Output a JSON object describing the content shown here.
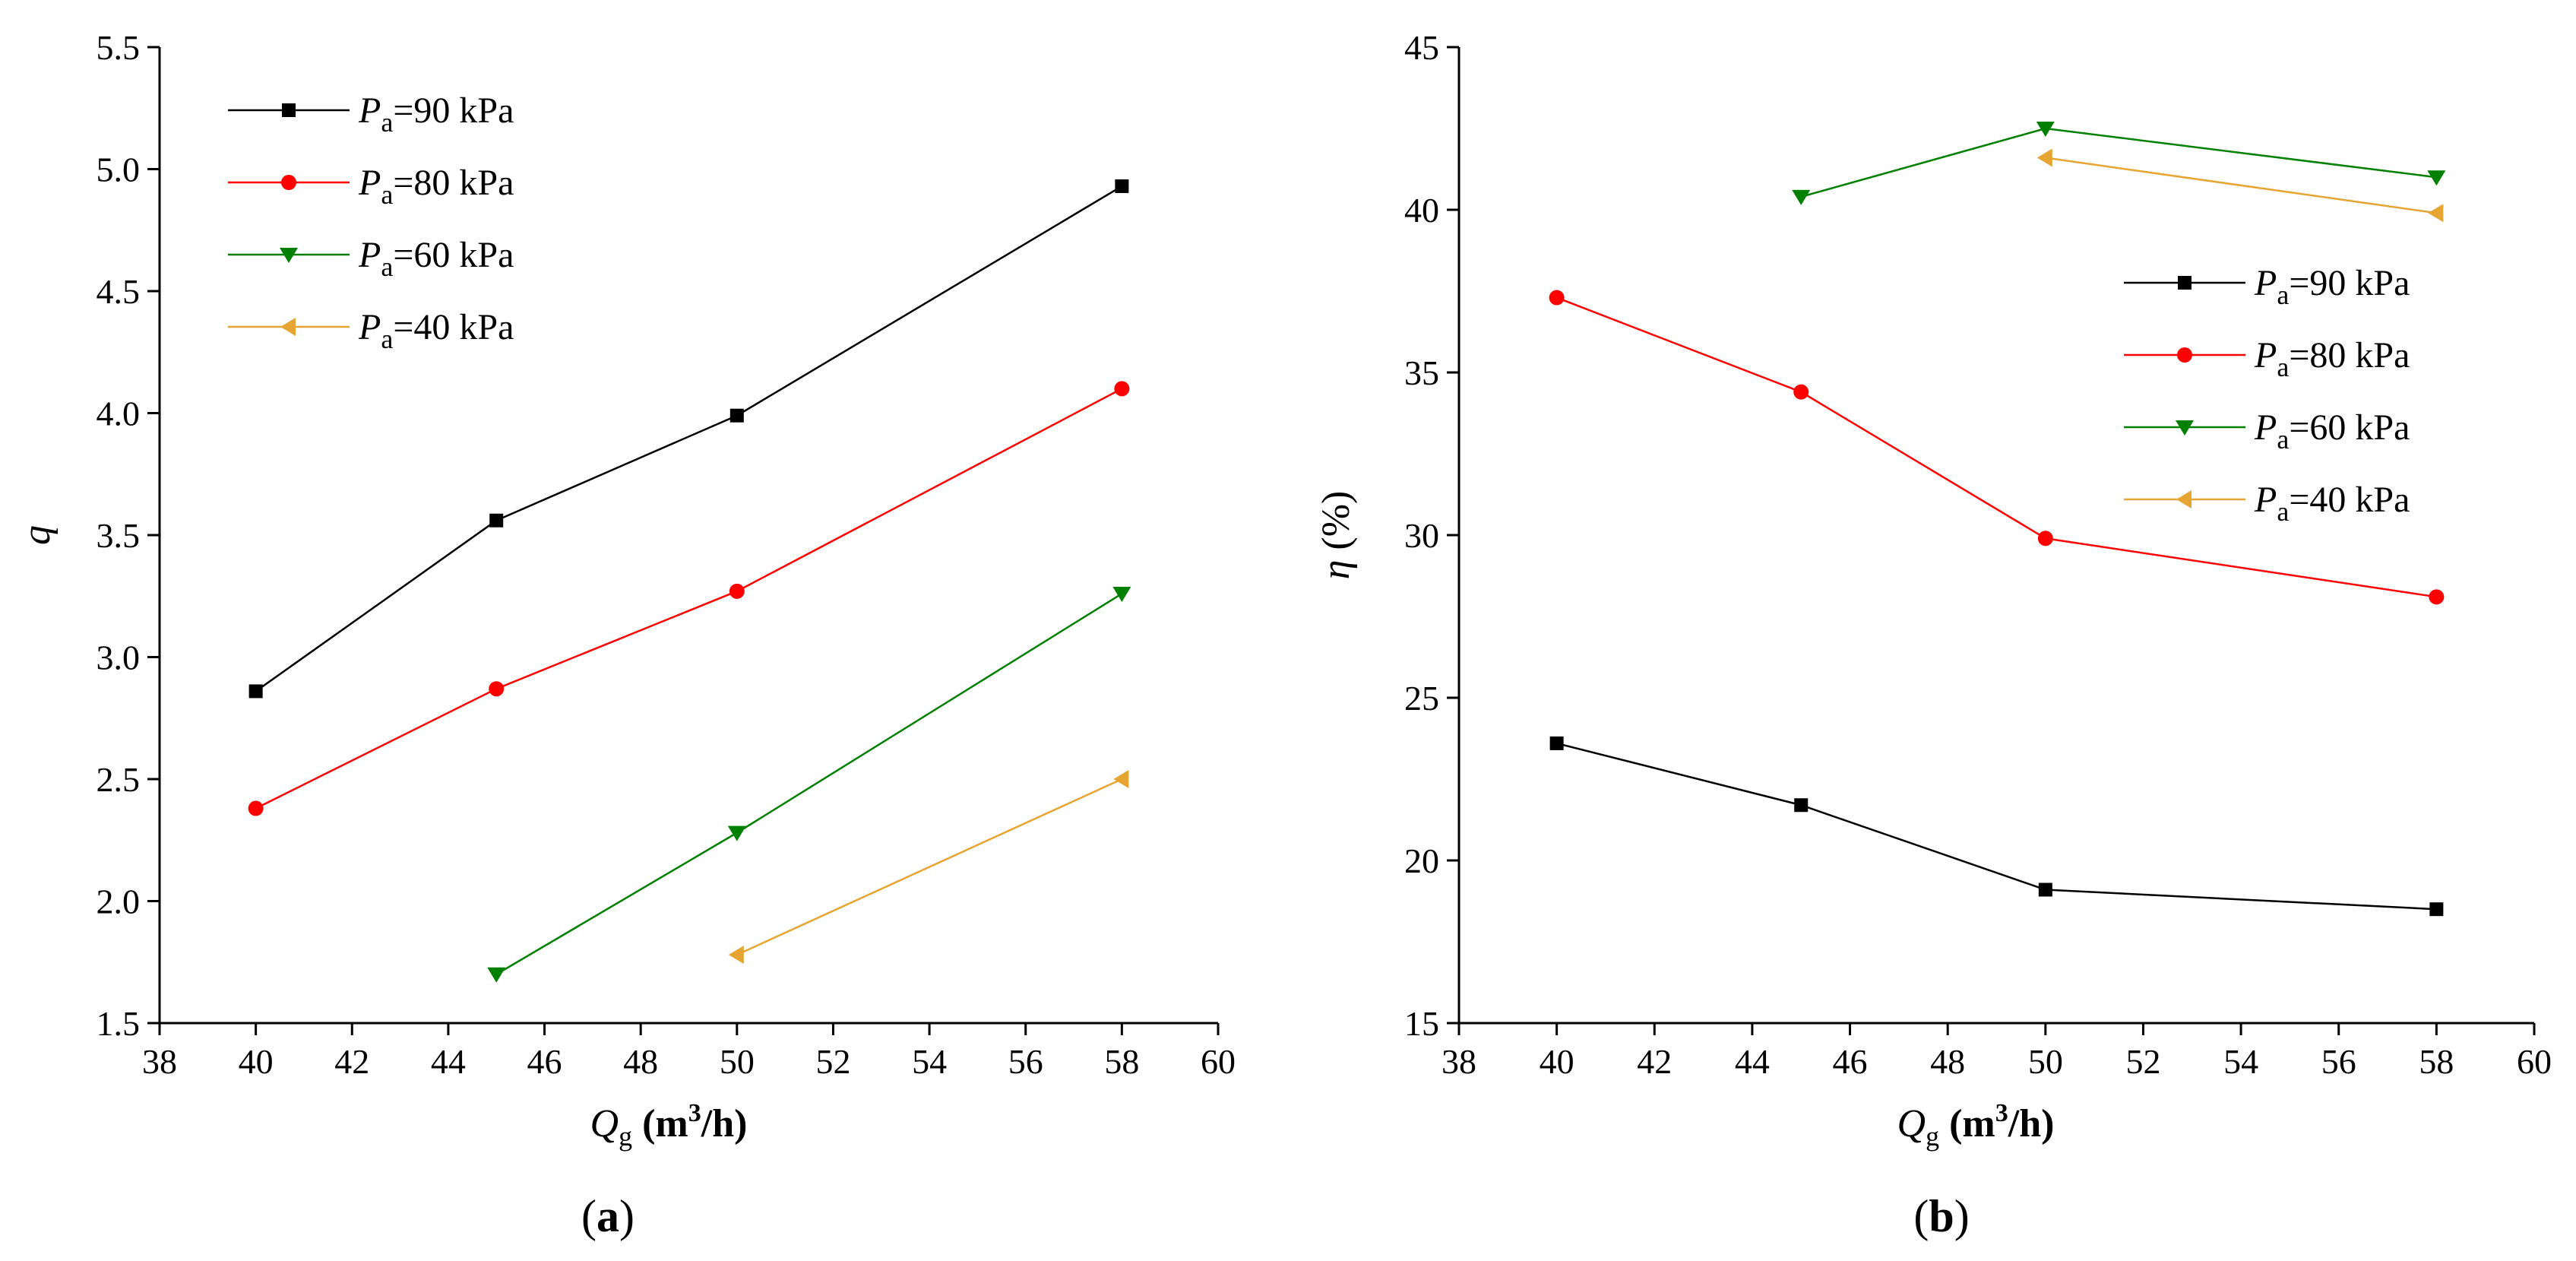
{
  "figure": {
    "panels": [
      "a",
      "b"
    ]
  },
  "chart_data": [
    {
      "id": "a",
      "type": "line",
      "panel_label": "a",
      "xlabel": {
        "main": "Q",
        "sub": "g",
        "unit_pre": " (m",
        "unit_sup": "3",
        "unit_post": "/h)"
      },
      "ylabel": {
        "main": "q"
      },
      "xlim": [
        38,
        60
      ],
      "ylim": [
        1.5,
        5.5
      ],
      "xticks": [
        38,
        40,
        42,
        44,
        46,
        48,
        50,
        52,
        54,
        56,
        58,
        60
      ],
      "yticks": [
        1.5,
        2.0,
        2.5,
        3.0,
        3.5,
        4.0,
        4.5,
        5.0,
        5.5
      ],
      "ytick_decimals": 1,
      "legend_position": "top-left",
      "series": [
        {
          "name": "P_a=90 kPa",
          "label_main": "P",
          "label_sub": "a",
          "label_rest": "=90 kPa",
          "color": "#000000",
          "marker": "square",
          "x": [
            40,
            45,
            50,
            58
          ],
          "y": [
            2.86,
            3.56,
            3.99,
            4.93
          ]
        },
        {
          "name": "P_a=80 kPa",
          "label_main": "P",
          "label_sub": "a",
          "label_rest": "=80 kPa",
          "color": "#ff0000",
          "marker": "circle",
          "x": [
            40,
            45,
            50,
            58
          ],
          "y": [
            2.38,
            2.87,
            3.27,
            4.1
          ]
        },
        {
          "name": "P_a=60 kPa",
          "label_main": "P",
          "label_sub": "a",
          "label_rest": "=60 kPa",
          "color": "#008000",
          "marker": "triangle-down",
          "x": [
            45,
            50,
            58
          ],
          "y": [
            1.7,
            2.28,
            3.26
          ]
        },
        {
          "name": "P_a=40 kPa",
          "label_main": "P",
          "label_sub": "a",
          "label_rest": "=40 kPa",
          "color": "#e6a532",
          "marker": "triangle-left",
          "x": [
            50,
            58
          ],
          "y": [
            1.78,
            2.5
          ]
        }
      ]
    },
    {
      "id": "b",
      "type": "line",
      "panel_label": "b",
      "xlabel": {
        "main": "Q",
        "sub": "g",
        "unit_pre": " (m",
        "unit_sup": "3",
        "unit_post": "/h)"
      },
      "ylabel": {
        "main": "η",
        "rest": " (%)"
      },
      "xlim": [
        38,
        60
      ],
      "ylim": [
        15,
        45
      ],
      "xticks": [
        38,
        40,
        42,
        44,
        46,
        48,
        50,
        52,
        54,
        56,
        58,
        60
      ],
      "yticks": [
        15,
        20,
        25,
        30,
        35,
        40,
        45
      ],
      "ytick_decimals": 0,
      "legend_position": "center-right",
      "series": [
        {
          "name": "P_a=90 kPa",
          "label_main": "P",
          "label_sub": "a",
          "label_rest": "=90 kPa",
          "color": "#000000",
          "marker": "square",
          "x": [
            40,
            45,
            50,
            58
          ],
          "y": [
            23.6,
            21.7,
            19.1,
            18.5
          ]
        },
        {
          "name": "P_a=80 kPa",
          "label_main": "P",
          "label_sub": "a",
          "label_rest": "=80 kPa",
          "color": "#ff0000",
          "marker": "circle",
          "x": [
            40,
            45,
            50,
            58
          ],
          "y": [
            37.3,
            34.4,
            29.9,
            28.1
          ]
        },
        {
          "name": "P_a=60 kPa",
          "label_main": "P",
          "label_sub": "a",
          "label_rest": "=60 kPa",
          "color": "#008000",
          "marker": "triangle-down",
          "x": [
            45,
            50,
            58
          ],
          "y": [
            40.4,
            42.5,
            41.0
          ]
        },
        {
          "name": "P_a=40 kPa",
          "label_main": "P",
          "label_sub": "a",
          "label_rest": "=40 kPa",
          "color": "#e6a532",
          "marker": "triangle-left",
          "x": [
            50,
            58
          ],
          "y": [
            41.6,
            39.9
          ]
        }
      ]
    }
  ]
}
